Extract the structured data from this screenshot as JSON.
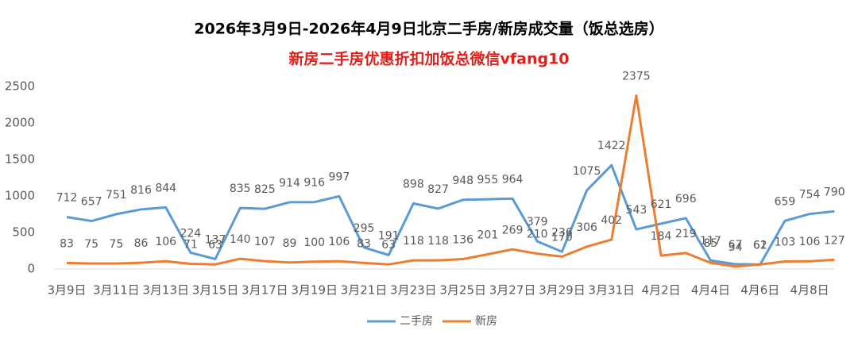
{
  "chart_data": {
    "type": "line",
    "title": "2026年3月9日-2026年4月9日北京二手房/新房成交量（饭总选房）",
    "subtitle": "新房二手房优惠折扣加饭总微信vfang10",
    "categories": [
      "3月9日",
      null,
      "3月11日",
      null,
      "3月13日",
      null,
      "3月15日",
      null,
      "3月17日",
      null,
      "3月19日",
      null,
      "3月21日",
      null,
      "3月23日",
      null,
      "3月25日",
      null,
      "3月27日",
      null,
      "3月29日",
      null,
      "3月31日",
      null,
      "4月2日",
      null,
      "4月4日",
      null,
      "4月6日",
      null,
      "4月8日",
      null
    ],
    "series": [
      {
        "name": "二手房",
        "color": "#5b9bd5",
        "values": [
          712,
          657,
          751,
          816,
          844,
          224,
          137,
          835,
          825,
          914,
          916,
          997,
          295,
          191,
          898,
          827,
          948,
          955,
          964,
          379,
          236,
          1075,
          1422,
          543,
          621,
          696,
          117,
          67,
          61,
          659,
          754,
          790
        ]
      },
      {
        "name": "新房",
        "color": "#ed7d31",
        "values": [
          83,
          75,
          75,
          86,
          106,
          71,
          63,
          140,
          107,
          89,
          100,
          106,
          83,
          63,
          118,
          118,
          136,
          201,
          269,
          210,
          170,
          306,
          402,
          2375,
          184,
          219,
          85,
          34,
          62,
          103,
          106,
          127
        ]
      }
    ],
    "ylim": [
      0,
      2500
    ],
    "yticks": [
      0,
      500,
      1000,
      1500,
      2000,
      2500
    ],
    "grid": false,
    "legend": "bottom"
  }
}
